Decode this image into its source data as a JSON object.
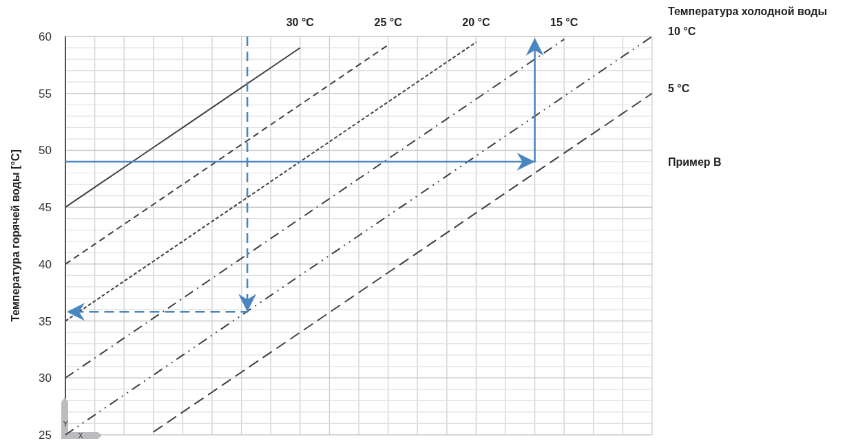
{
  "chart_data": {
    "type": "line",
    "ylabel": "Температура горячей воды [°C]",
    "legend_title": "Температура холодной воды",
    "categories": [
      null,
      null,
      null,
      null,
      null,
      null,
      null,
      null,
      null,
      null,
      null,
      null,
      null,
      null,
      null,
      null,
      null,
      null,
      null,
      null,
      null
    ],
    "series": [
      {
        "name": "30 °C",
        "color": "#404040",
        "line_style": "solid",
        "values": [
          45,
          46.75,
          48.5,
          50.25,
          52,
          53.75,
          55.5,
          57.25,
          59,
          null,
          null,
          null,
          null,
          null,
          null,
          null,
          null,
          null,
          null,
          null,
          null
        ]
      },
      {
        "name": "25 °C",
        "color": "#404040",
        "line_style": "dashed",
        "values": [
          40,
          41.75,
          43.5,
          45.25,
          47,
          48.75,
          50.5,
          52.25,
          54,
          55.75,
          57.5,
          59.25,
          null,
          null,
          null,
          null,
          null,
          null,
          null,
          null,
          null
        ]
      },
      {
        "name": "20 °C",
        "color": "#404040",
        "line_style": "dotted",
        "values": [
          35,
          36.75,
          38.5,
          40.25,
          42,
          43.75,
          45.5,
          47.25,
          49,
          50.75,
          52.5,
          54.25,
          56,
          57.75,
          59.5,
          null,
          null,
          null,
          null,
          null,
          null
        ]
      },
      {
        "name": "15 °C",
        "color": "#404040",
        "line_style": "dashdot",
        "values": [
          30,
          31.75,
          33.5,
          35.25,
          37,
          38.75,
          40.5,
          42.25,
          44,
          45.75,
          47.5,
          49.25,
          51,
          52.75,
          54.5,
          56.25,
          58,
          59.75,
          null,
          null,
          null
        ]
      },
      {
        "name": "10 °C",
        "color": "#404040",
        "line_style": "dashdotdot",
        "values": [
          25,
          26.75,
          28.5,
          30.25,
          32,
          33.75,
          35.5,
          37.25,
          39,
          40.75,
          42.5,
          44.25,
          46,
          47.75,
          49.5,
          51.25,
          53,
          54.75,
          56.5,
          58.25,
          60
        ]
      },
      {
        "name": "5 °C",
        "color": "#404040",
        "line_style": "longdash",
        "values": [
          null,
          null,
          null,
          25.25,
          27,
          28.75,
          30.5,
          32.25,
          34,
          35.75,
          37.5,
          39.25,
          41,
          42.75,
          44.5,
          46.25,
          48,
          49.75,
          51.5,
          53.25,
          55
        ]
      }
    ],
    "ylim": [
      25,
      60
    ],
    "yticks": [
      25,
      {
        "value": 26,
        "label": null
      },
      {
        "value": 27,
        "label": null
      },
      {
        "value": 28,
        "label": null
      },
      {
        "value": 29,
        "label": null
      },
      30,
      {
        "value": 31,
        "label": null
      },
      {
        "value": 32,
        "label": null
      },
      {
        "value": 33,
        "label": null
      },
      {
        "value": 34,
        "label": null
      },
      35,
      {
        "value": 36,
        "label": null
      },
      {
        "value": 37,
        "label": null
      },
      {
        "value": 38,
        "label": null
      },
      {
        "value": 39,
        "label": null
      },
      40,
      {
        "value": 41,
        "label": null
      },
      {
        "value": 42,
        "label": null
      },
      {
        "value": 43,
        "label": null
      },
      {
        "value": 44,
        "label": null
      },
      45,
      {
        "value": 46,
        "label": null
      },
      {
        "value": 47,
        "label": null
      },
      {
        "value": 48,
        "label": null
      },
      {
        "value": 49,
        "label": null
      },
      50,
      {
        "value": 51,
        "label": null
      },
      {
        "value": 52,
        "label": null
      },
      {
        "value": 53,
        "label": null
      },
      {
        "value": 54,
        "label": null
      },
      55,
      {
        "value": 56,
        "label": null
      },
      {
        "value": 57,
        "label": null
      },
      {
        "value": 58,
        "label": null
      },
      {
        "value": 59,
        "label": null
      },
      60
    ],
    "grid": true,
    "annotations": [
      "Пример B",
      "Y",
      "X"
    ]
  }
}
